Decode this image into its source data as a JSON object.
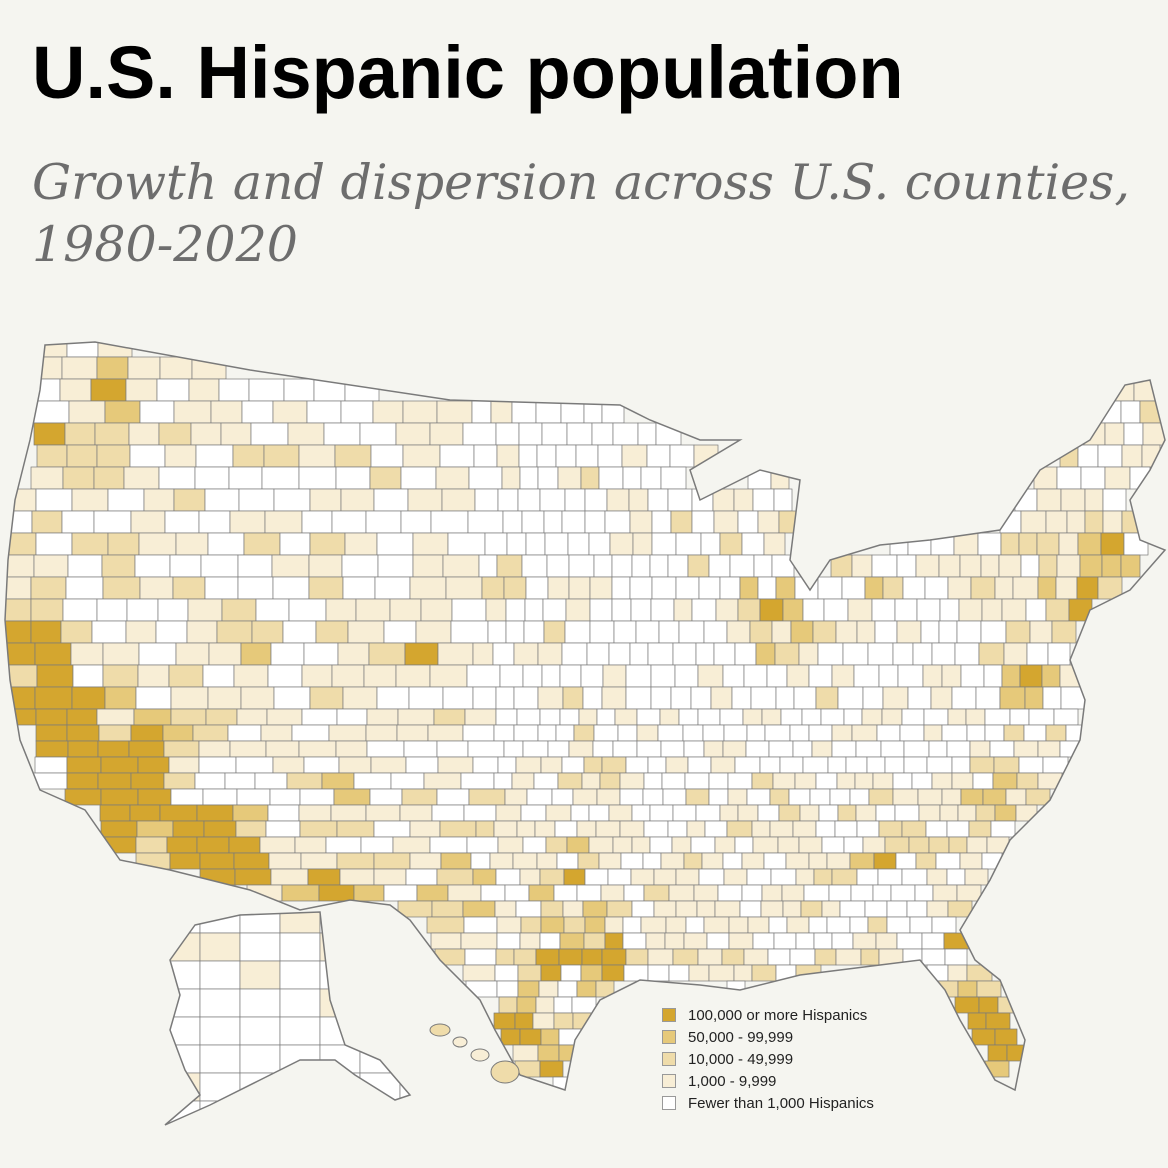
{
  "title": "U.S. Hispanic population",
  "subtitle": "Growth and dispersion across U.S. counties, 1980-2020",
  "background": "#f5f5f0",
  "legend": {
    "items": [
      {
        "label": "100,000 or more Hispanics",
        "color": "#d4a62f"
      },
      {
        "label": "50,000 - 99,999",
        "color": "#e6c97a"
      },
      {
        "label": "10,000 - 49,999",
        "color": "#efdcaa"
      },
      {
        "label": "1,000 - 9,999",
        "color": "#f8eed6"
      },
      {
        "label": "Fewer than 1,000 Hispanics",
        "color": "#ffffff"
      }
    ]
  },
  "map": {
    "border_color": "#7a7a7a",
    "regions": [
      "Contiguous United States",
      "Alaska",
      "Hawaii"
    ]
  }
}
